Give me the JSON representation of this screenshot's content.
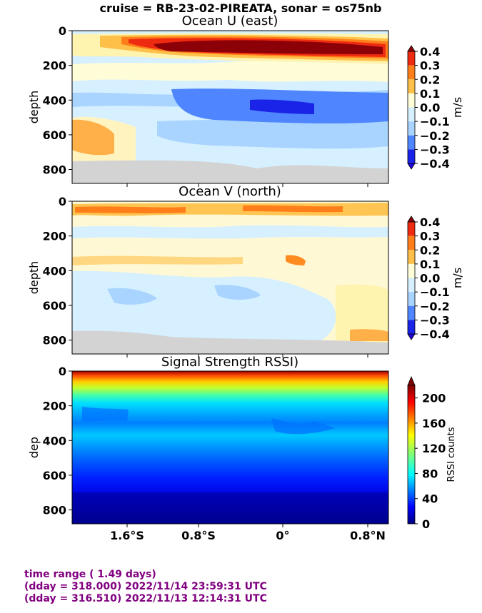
{
  "suptitle": "cruise = RB-23-02-PIREATA,  sonar = os75nb",
  "footer": {
    "line1": "time range ( 1.49 days)",
    "line2": "(dday = 318.000) 2022/11/14 23:59:31 UTC",
    "line3": "(dday = 316.510) 2022/11/13 12:14:31 UTC"
  },
  "colors": {
    "text": "#000000",
    "footer": "#800080",
    "no_data_gray": "#d3d3d3"
  },
  "chart_data": [
    {
      "type": "heatmap",
      "title": "Ocean U (east)",
      "ylabel": "depth",
      "xlabel": "",
      "ylim": [
        880,
        0
      ],
      "yticks": [
        0,
        200,
        400,
        600,
        800
      ],
      "xticks": [
        "1.6°S",
        "0.8°S",
        "0°",
        "0.8°N"
      ],
      "show_xticklabels": false,
      "colorbar": {
        "label": "m/s",
        "ticks": [
          "0.4",
          "0.3",
          "0.2",
          "0.1",
          "0.0",
          "−0.1",
          "−0.2",
          "−0.3",
          "−0.4"
        ],
        "levels": [
          -0.4,
          -0.3,
          -0.2,
          -0.1,
          0.0,
          0.1,
          0.2,
          0.3,
          0.4
        ],
        "colormap": "jet-like diverging",
        "extend": "both"
      },
      "bottom_mask_depth": "about 760-820 (gray, no data)"
    },
    {
      "type": "heatmap",
      "title": "Ocean V (north)",
      "ylabel": "depth",
      "xlabel": "",
      "ylim": [
        880,
        0
      ],
      "yticks": [
        0,
        200,
        400,
        600,
        800
      ],
      "xticks": [
        "1.6°S",
        "0.8°S",
        "0°",
        "0.8°N"
      ],
      "show_xticklabels": false,
      "colorbar": {
        "label": "m/s",
        "ticks": [
          "0.4",
          "0.3",
          "0.2",
          "0.1",
          "0.0",
          "−0.1",
          "−0.2",
          "−0.3",
          "−0.4"
        ],
        "levels": [
          -0.4,
          -0.3,
          -0.2,
          -0.1,
          0.0,
          0.1,
          0.2,
          0.3,
          0.4
        ],
        "colormap": "jet-like diverging",
        "extend": "both"
      },
      "bottom_mask_depth": "about 760-830 (gray, no data)"
    },
    {
      "type": "heatmap",
      "title": "Signal Strength RSSI)",
      "ylabel": "dep",
      "xlabel": "",
      "ylim": [
        880,
        0
      ],
      "yticks": [
        0,
        200,
        400,
        600,
        800
      ],
      "xticks": [
        "1.6°S",
        "0.8°S",
        "0°",
        "0.8°N"
      ],
      "show_xticklabels": true,
      "colorbar": {
        "label": "RSSI counts",
        "ticks": [
          "200",
          "160",
          "120",
          "80",
          "40",
          "0"
        ],
        "range": [
          0,
          220
        ],
        "colormap": "jet",
        "extend": "max"
      }
    }
  ]
}
